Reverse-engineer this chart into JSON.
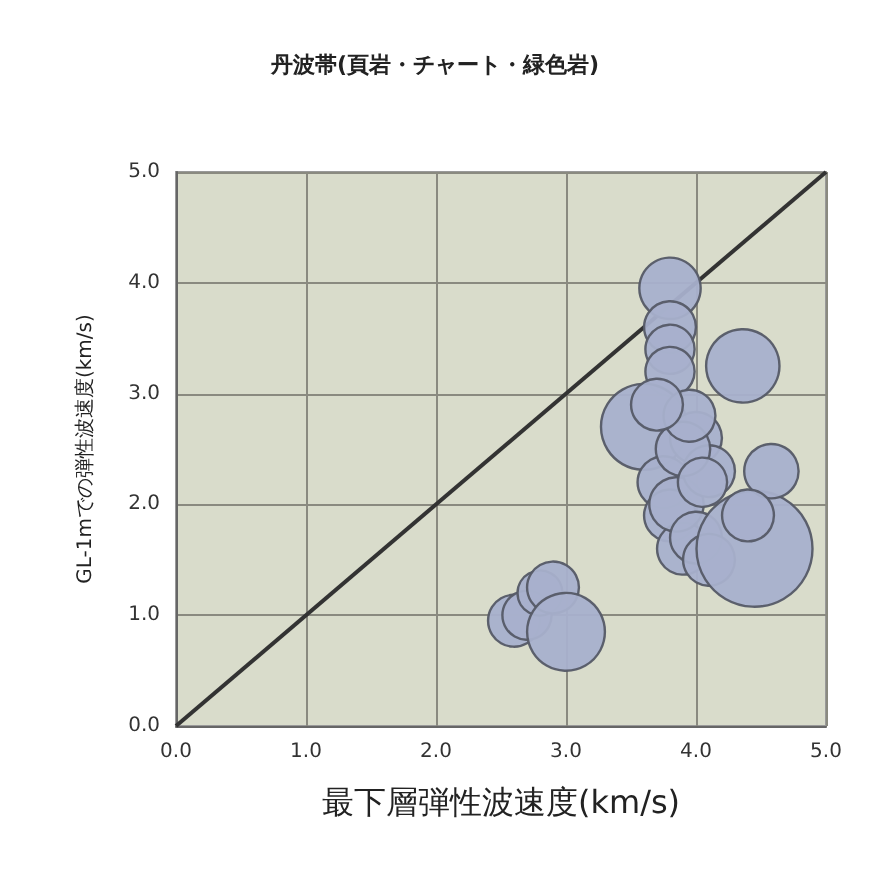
{
  "chart_data": {
    "type": "bubble",
    "title": "丹波帯(頁岩・チャート・緑色岩)",
    "xlabel": "最下層弾性波速度(km/s)",
    "ylabel": "GL-1mでの弾性波速度(km/s)",
    "xlim": [
      0,
      5
    ],
    "ylim": [
      0,
      5
    ],
    "xticks": [
      {
        "value": 0,
        "label": "0.0"
      },
      {
        "value": 1,
        "label": "1.0"
      },
      {
        "value": 2,
        "label": "2.0"
      },
      {
        "value": 3,
        "label": "3.0"
      },
      {
        "value": 4,
        "label": "4.0"
      },
      {
        "value": 5,
        "label": "5.0"
      }
    ],
    "yticks": [
      {
        "value": 0,
        "label": "0.0"
      },
      {
        "value": 1,
        "label": "1.0"
      },
      {
        "value": 2,
        "label": "2.0"
      },
      {
        "value": 3,
        "label": "3.0"
      },
      {
        "value": 4,
        "label": "4.0"
      },
      {
        "value": 5,
        "label": "5.0"
      }
    ],
    "grid": true,
    "series": [
      {
        "color": "#a8b0cc",
        "x": [
          2.6,
          2.7,
          2.8,
          2.9,
          3.0,
          3.8,
          3.8,
          3.8,
          3.8,
          3.6,
          3.75,
          3.8,
          3.9,
          3.85,
          4.0,
          4.36,
          4.1,
          4.0,
          3.9,
          4.1,
          4.45,
          4.58,
          4.4,
          3.95,
          3.7,
          4.05
        ],
        "values": [
          0.95,
          1.0,
          1.2,
          1.25,
          0.85,
          3.95,
          3.6,
          3.4,
          3.2,
          2.7,
          2.2,
          1.9,
          1.6,
          2.0,
          2.6,
          3.25,
          2.3,
          1.7,
          2.5,
          1.5,
          1.6,
          2.3,
          1.9,
          2.8,
          2.9,
          2.2
        ],
        "sizes": [
          0.2,
          0.18,
          0.15,
          0.2,
          0.45,
          0.28,
          0.2,
          0.18,
          0.18,
          0.55,
          0.2,
          0.2,
          0.2,
          0.22,
          0.2,
          0.4,
          0.2,
          0.2,
          0.22,
          0.2,
          1.0,
          0.22,
          0.2,
          0.2,
          0.2,
          0.18
        ]
      },
      {
        "type": "line",
        "color": "#333333",
        "x": [
          0,
          5
        ],
        "values": [
          0,
          5
        ],
        "marker": "none"
      }
    ]
  }
}
